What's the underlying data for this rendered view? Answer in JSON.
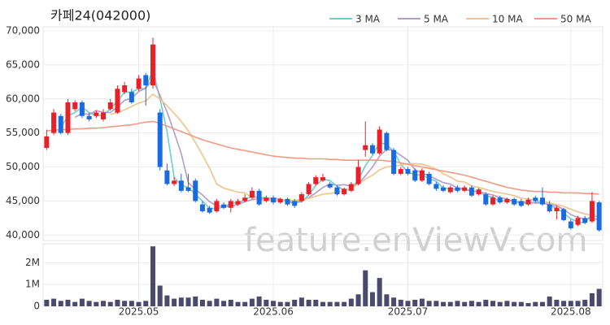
{
  "chart_data": {
    "type": "candlestick",
    "title": "카페24(042000)",
    "watermark": "feature.enViewV.com",
    "categories": [
      null,
      null,
      null,
      null,
      null,
      null,
      null,
      null,
      null,
      null,
      null,
      null,
      null,
      null,
      null,
      null,
      null,
      null,
      null,
      null,
      null,
      null,
      null,
      null,
      null,
      null,
      null,
      null,
      null,
      null,
      null,
      null,
      null,
      null,
      null,
      null,
      null,
      null,
      null,
      null,
      null,
      null,
      null,
      null,
      null,
      null,
      null,
      null,
      null,
      null,
      null,
      null,
      null,
      null,
      null,
      null,
      null,
      null,
      null,
      null,
      null,
      null,
      null,
      null,
      null,
      null,
      null,
      null,
      null,
      null,
      null,
      null,
      null,
      null,
      null,
      null,
      null,
      null,
      null
    ],
    "xticks": [
      {
        "value": 13,
        "label": "2025.05"
      },
      {
        "value": 32,
        "label": "2025.06"
      },
      {
        "value": 51,
        "label": "2025.07"
      },
      {
        "value": 74,
        "label": "2025.08"
      }
    ],
    "open": [
      52800,
      55000,
      57500,
      55000,
      58500,
      59500,
      57500,
      57500,
      57000,
      58500,
      58000,
      61000,
      61000,
      61500,
      63500,
      62000,
      58000,
      49500,
      47500,
      48000,
      47000,
      48000,
      44500,
      44000,
      43500,
      44500,
      44000,
      44500,
      45000,
      45500,
      46500,
      45000,
      45500,
      44800,
      45300,
      45000,
      45000,
      46000,
      47500,
      48000,
      47500,
      47000,
      46000,
      46500,
      47500,
      52500,
      53200,
      52000,
      55000,
      52500,
      49000,
      49700,
      49500,
      48000,
      49000,
      47500,
      47000,
      46300,
      47000,
      46500,
      47000,
      46000,
      46000,
      44500,
      45500,
      44800,
      45300,
      45000,
      44500,
      45500,
      45500,
      44500,
      43500,
      43800,
      42000,
      41500,
      42500,
      42000,
      44800
    ],
    "high": [
      55500,
      58500,
      57800,
      60000,
      59800,
      59800,
      58000,
      58300,
      58500,
      60000,
      62000,
      62500,
      61500,
      63500,
      63800,
      69000,
      58500,
      50500,
      48500,
      49000,
      49000,
      48300,
      45000,
      44300,
      45300,
      44800,
      45300,
      45300,
      46000,
      47000,
      46800,
      45800,
      45800,
      45500,
      45500,
      45300,
      46300,
      47800,
      48800,
      49000,
      47800,
      47300,
      47000,
      47800,
      51000,
      56700,
      53500,
      56000,
      55200,
      52800,
      50000,
      50000,
      49800,
      49800,
      49300,
      47800,
      47300,
      47300,
      47300,
      47300,
      47300,
      46900,
      46300,
      45800,
      45800,
      45500,
      45500,
      45300,
      45500,
      45800,
      47000,
      45000,
      44300,
      44000,
      42300,
      42800,
      42800,
      46300,
      45000
    ],
    "low": [
      52500,
      54700,
      54800,
      54700,
      58200,
      57200,
      56700,
      57200,
      56700,
      58300,
      57800,
      60700,
      59300,
      61200,
      59000,
      61500,
      49500,
      47300,
      47200,
      46300,
      46300,
      44800,
      43300,
      43100,
      43300,
      43800,
      43300,
      44300,
      44800,
      45300,
      44300,
      44800,
      44500,
      44600,
      44300,
      44000,
      44800,
      45800,
      47300,
      47800,
      46800,
      45800,
      45800,
      46300,
      47300,
      51500,
      51800,
      51800,
      52300,
      48800,
      48800,
      48800,
      47800,
      47800,
      47300,
      46500,
      46300,
      46100,
      46300,
      46300,
      45600,
      45800,
      44300,
      44300,
      44600,
      44600,
      44300,
      44100,
      44300,
      44800,
      44300,
      43300,
      42300,
      42000,
      40800,
      41300,
      41600,
      41800,
      40500
    ],
    "close": [
      54500,
      58000,
      55000,
      59500,
      59500,
      57500,
      57000,
      58000,
      58000,
      59500,
      61500,
      62000,
      59500,
      63000,
      62000,
      68000,
      50000,
      47500,
      48000,
      46500,
      46500,
      45000,
      43500,
      43300,
      45000,
      44000,
      45000,
      45000,
      45500,
      46500,
      44500,
      45500,
      44800,
      45300,
      44500,
      44300,
      46000,
      47500,
      48500,
      48500,
      47000,
      46000,
      46800,
      47500,
      50000,
      53200,
      52000,
      55500,
      52500,
      49000,
      49700,
      49000,
      48000,
      49500,
      47500,
      46800,
      46500,
      47000,
      46500,
      47000,
      45800,
      46700,
      44500,
      45500,
      44800,
      45300,
      44500,
      44300,
      45200,
      45000,
      44500,
      43500,
      44000,
      42200,
      41000,
      42500,
      41800,
      45000,
      40700
    ],
    "up_color": "#e8202a",
    "down_color": "#1a6be0",
    "ylim": [
      39200,
      70600
    ],
    "yticks": [
      {
        "value": 40000,
        "label": "40,000"
      },
      {
        "value": 45000,
        "label": "45,000"
      },
      {
        "value": 50000,
        "label": "50,000"
      },
      {
        "value": 55000,
        "label": "55,000"
      },
      {
        "value": 60000,
        "label": "60,000"
      },
      {
        "value": 65000,
        "label": "65,000"
      },
      {
        "value": 70000,
        "label": "70,000"
      }
    ],
    "grid": true,
    "legend": "top-right",
    "series": [
      {
        "name": "3 MA",
        "color": "#6fcfcb",
        "values": [
          null,
          null,
          55800,
          57500,
          58000,
          58800,
          58000,
          57500,
          57700,
          58500,
          59700,
          61000,
          61000,
          61500,
          61500,
          64300,
          60000,
          55200,
          48500,
          47300,
          47000,
          46000,
          45000,
          43900,
          43900,
          44100,
          44700,
          44700,
          45200,
          45700,
          45500,
          45500,
          44900,
          45200,
          44900,
          44700,
          44900,
          45900,
          47300,
          48200,
          48000,
          47200,
          46600,
          46800,
          48100,
          50200,
          51700,
          53600,
          53300,
          52300,
          50400,
          49200,
          48900,
          48800,
          48300,
          47900,
          46900,
          46800,
          46700,
          46800,
          46400,
          46500,
          45700,
          45600,
          44900,
          45200,
          44900,
          44700,
          44700,
          44800,
          44900,
          44300,
          44000,
          43200,
          42400,
          41900,
          41800,
          43100,
          42500
        ]
      },
      {
        "name": "5 MA",
        "color": "#b49cc9",
        "values": [
          null,
          null,
          null,
          null,
          57300,
          57900,
          57700,
          58300,
          58000,
          58000,
          58800,
          59800,
          60100,
          61100,
          61600,
          62900,
          60500,
          58100,
          55100,
          52000,
          47700,
          46700,
          45900,
          44900,
          44300,
          44200,
          44200,
          44500,
          44900,
          45200,
          45300,
          45400,
          45400,
          45300,
          44900,
          44900,
          45000,
          45500,
          46200,
          47000,
          47500,
          47300,
          47400,
          47200,
          47500,
          48700,
          50000,
          51600,
          52600,
          52400,
          51700,
          51000,
          49600,
          49100,
          48700,
          48200,
          47700,
          47500,
          46900,
          46800,
          46400,
          46400,
          46100,
          45900,
          45500,
          45300,
          44900,
          44900,
          44800,
          44700,
          44700,
          44500,
          44300,
          43800,
          43000,
          42600,
          42300,
          42500,
          42200
        ]
      },
      {
        "name": "10 MA",
        "color": "#f2c28c",
        "values": [
          null,
          null,
          null,
          null,
          null,
          null,
          null,
          null,
          null,
          57700,
          58000,
          58400,
          58900,
          59400,
          59700,
          60700,
          60000,
          59000,
          57900,
          56700,
          55300,
          53600,
          51800,
          49800,
          47500,
          46900,
          46600,
          46300,
          46200,
          45500,
          45100,
          45100,
          45100,
          45200,
          45100,
          45100,
          45200,
          45400,
          45700,
          46000,
          46100,
          46300,
          46500,
          46900,
          47500,
          48200,
          48800,
          49600,
          50000,
          50100,
          50300,
          50500,
          50500,
          50400,
          50100,
          49700,
          49000,
          48500,
          47900,
          47800,
          47200,
          47000,
          46700,
          46400,
          46200,
          46000,
          45800,
          45400,
          45300,
          45100,
          45000,
          44700,
          44500,
          44200,
          43800,
          43400,
          43100,
          42900,
          42700
        ]
      },
      {
        "name": "50 MA",
        "color": "#f29a86",
        "values": [
          55300,
          55400,
          55500,
          55500,
          55600,
          55600,
          55700,
          55700,
          55800,
          55900,
          56000,
          56100,
          56200,
          56400,
          56600,
          56700,
          56400,
          56000,
          55600,
          55200,
          54800,
          54400,
          54000,
          53700,
          53400,
          53100,
          52800,
          52600,
          52400,
          52200,
          52000,
          51800,
          51600,
          51500,
          51400,
          51300,
          51300,
          51200,
          51200,
          51200,
          51100,
          51100,
          51000,
          51000,
          51000,
          51000,
          51000,
          51000,
          50900,
          50800,
          50600,
          50400,
          50200,
          50000,
          49800,
          49600,
          49400,
          49200,
          49000,
          48800,
          48500,
          48200,
          47900,
          47600,
          47300,
          47000,
          46800,
          46600,
          46500,
          46400,
          46400,
          46300,
          46300,
          46200,
          46200,
          46200,
          46100,
          46100,
          46000
        ]
      }
    ],
    "volume": {
      "color": "#4a4a6c",
      "ylim": [
        0,
        2870000
      ],
      "yticks": [
        0,
        {
          "value": 1000000,
          "label": "1M"
        },
        {
          "value": 2000000,
          "label": "2M"
        }
      ],
      "values": [
        300000,
        350000,
        250000,
        300000,
        200000,
        350000,
        250000,
        200000,
        250000,
        200000,
        300000,
        250000,
        250000,
        200000,
        250000,
        2750000,
        950000,
        500000,
        350000,
        400000,
        400000,
        450000,
        300000,
        250000,
        350000,
        250000,
        300000,
        200000,
        200000,
        350000,
        450000,
        300000,
        250000,
        200000,
        200000,
        300000,
        400000,
        300000,
        300000,
        200000,
        200000,
        200000,
        200000,
        350000,
        550000,
        1650000,
        650000,
        1300000,
        550000,
        400000,
        300000,
        250000,
        300000,
        350000,
        250000,
        250000,
        200000,
        200000,
        250000,
        200000,
        250000,
        200000,
        300000,
        250000,
        200000,
        250000,
        200000,
        200000,
        150000,
        200000,
        200000,
        450000,
        300000,
        250000,
        250000,
        250000,
        300000,
        600000,
        800000
      ]
    }
  }
}
